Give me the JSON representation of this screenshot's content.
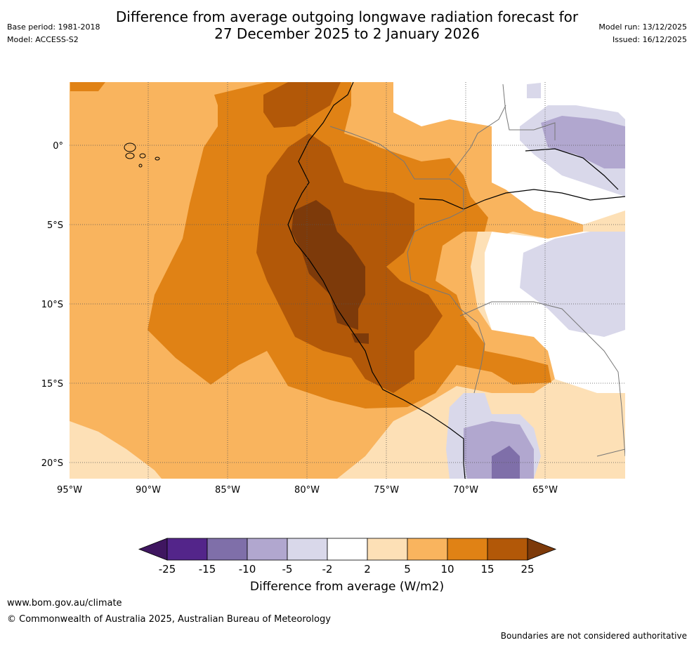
{
  "title": {
    "line1": "Difference from average outgoing longwave radiation forecast for",
    "line2": "27 December 2025 to 2 January 2026"
  },
  "meta": {
    "base_period": "Base period: 1981-2018",
    "model": "Model: ACCESS-S2",
    "model_run": "Model run: 13/12/2025",
    "issued": "Issued: 16/12/2025"
  },
  "map": {
    "lat_ticks": [
      "0°",
      "5°S",
      "10°S",
      "15°S",
      "20°S"
    ],
    "lon_ticks": [
      "95°W",
      "90°W",
      "85°W",
      "80°W",
      "75°W",
      "70°W",
      "65°W"
    ]
  },
  "colorbar": {
    "labels": [
      "-25",
      "-15",
      "-10",
      "-5",
      "-2",
      "2",
      "5",
      "10",
      "15",
      "25"
    ],
    "colors": [
      "#3f1660",
      "#53258a",
      "#7f6fa9",
      "#b1a7cf",
      "#d9d8ea",
      "#ffffff",
      "#fde0b6",
      "#f9b45e",
      "#e08215",
      "#b25808",
      "#7d3a0a"
    ],
    "title": "Difference from average (W/m2)"
  },
  "footer": {
    "url": "www.bom.gov.au/climate",
    "copyright": "© Commonwealth of Australia 2025, Australian Bureau of Meteorology",
    "note": "Boundaries are not considered authoritative"
  }
}
